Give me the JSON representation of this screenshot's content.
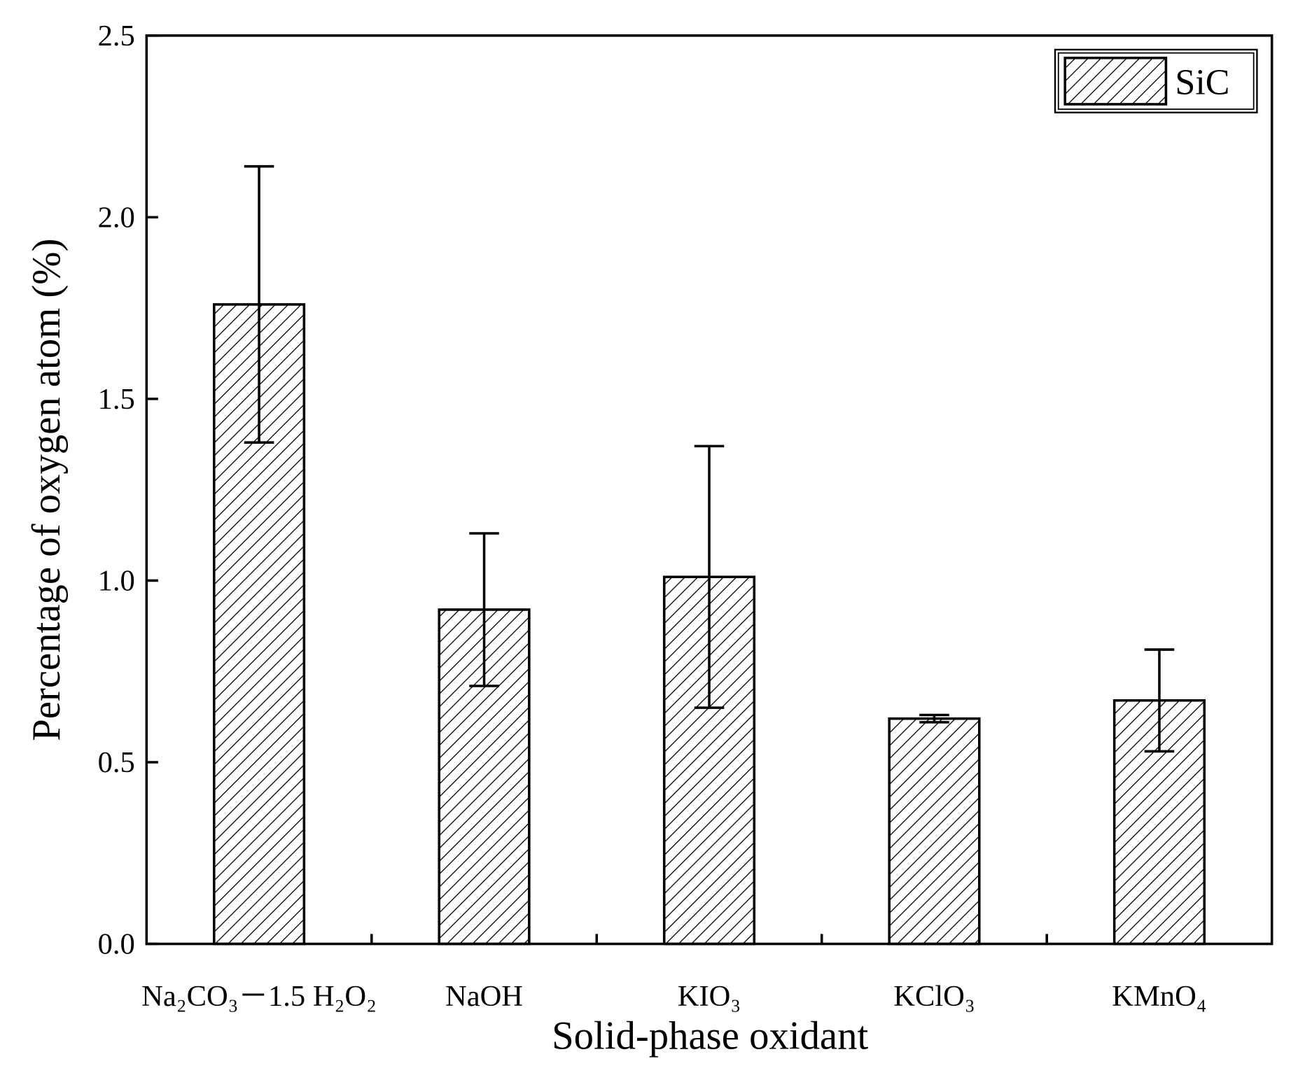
{
  "chart_data": {
    "type": "bar",
    "xlabel": "Solid-phase oxidant",
    "ylabel": "Percentage of oxygen atom (%)",
    "categories": [
      "Na₂CO₃－1.5 H₂O₂",
      "NaOH",
      "KIO₃",
      "KClO₃",
      "KMnO₄"
    ],
    "series": [
      {
        "name": "SiC",
        "color": "#000000",
        "hatch": "/",
        "values": [
          1.76,
          0.92,
          1.01,
          0.62,
          0.67
        ],
        "errors": [
          0.38,
          0.21,
          0.36,
          0.01,
          0.14
        ]
      }
    ],
    "ylim": [
      0,
      2.5
    ],
    "yticks": [
      {
        "value": 0,
        "label": "0.0"
      },
      0.5,
      {
        "value": 1,
        "label": "1.0"
      },
      1.5,
      {
        "value": 2,
        "label": "2.0"
      },
      2.5
    ],
    "legend": "upper right"
  }
}
